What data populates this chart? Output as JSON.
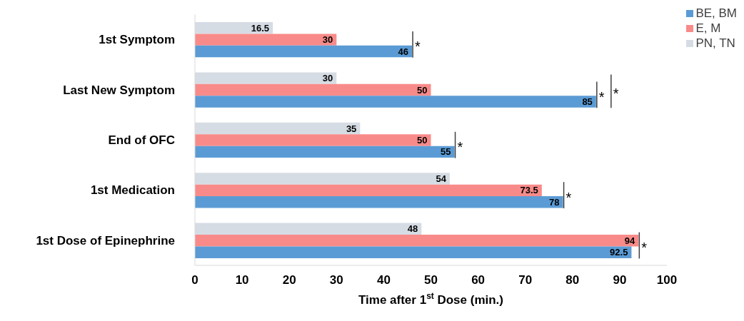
{
  "chart_data": {
    "type": "bar",
    "orientation": "horizontal",
    "xlabel": "Time after 1$^{st}$ Dose (min.)",
    "categories": [
      "1st Symptom",
      "Last New Symptom",
      "End of OFC",
      "1st Medication",
      "1st Dose of Epinephrine"
    ],
    "series": [
      {
        "name": "BE, BM",
        "color": "#5b9bd5",
        "values": [
          46,
          85,
          55,
          78,
          92.5
        ]
      },
      {
        "name": "E, M",
        "color": "#f88b89",
        "values": [
          30,
          50,
          50,
          73.5,
          94
        ]
      },
      {
        "name": "PN, TN",
        "color": "#d6dce4",
        "values": [
          16.5,
          30,
          35,
          54,
          48
        ]
      }
    ],
    "xlim": [
      0,
      100
    ],
    "xticks": [
      0,
      10,
      20,
      30,
      40,
      50,
      60,
      70,
      80,
      90,
      100
    ],
    "data_labels": true,
    "legend": "top right",
    "grid": false,
    "annotations": [
      "*",
      "*",
      "*",
      "*",
      "*",
      "*"
    ]
  }
}
